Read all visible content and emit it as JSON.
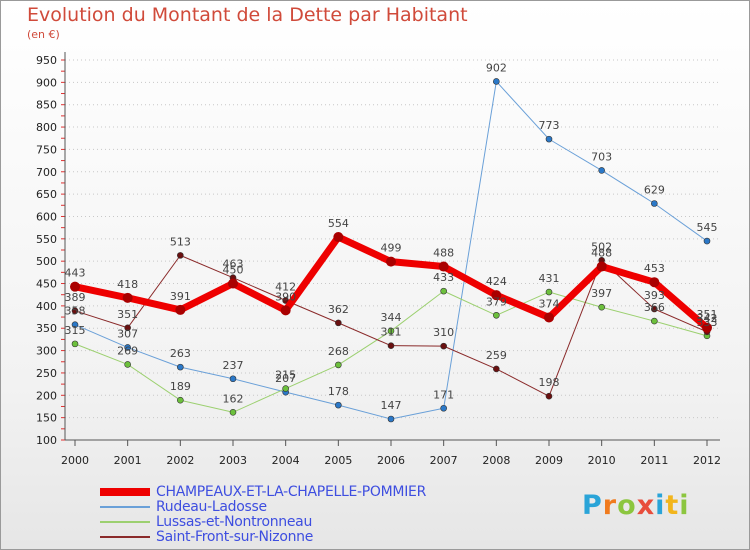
{
  "title": "Evolution du Montant de la Dette par Habitant",
  "subtitle": "(en €)",
  "logo": {
    "text": "Proxiti",
    "colors": [
      "#2aa4d8",
      "#f07b1e",
      "#8cc63f",
      "#e84d3c",
      "#2aa4d8",
      "#f2b51c",
      "#8cc63f"
    ]
  },
  "chart_data": {
    "type": "line",
    "title": "Evolution du Montant de la Dette par Habitant",
    "ylabel": "(en €)",
    "x": [
      "2000",
      "2001",
      "2002",
      "2003",
      "2004",
      "2005",
      "2006",
      "2007",
      "2008",
      "2009",
      "2010",
      "2011",
      "2012"
    ],
    "ylim": [
      100,
      950
    ],
    "yticks": [
      100,
      150,
      200,
      250,
      300,
      350,
      400,
      450,
      500,
      550,
      600,
      650,
      700,
      750,
      800,
      850,
      900,
      950
    ],
    "grid": "horizontal dotted",
    "legend": "bottom",
    "series": [
      {
        "name": "CHAMPEAUX-ET-LA-CHAPELLE-POMMIER",
        "color": "#ee0000",
        "point": "#aa0000",
        "width": 7,
        "values": [
          443,
          418,
          391,
          450,
          390,
          554,
          499,
          488,
          424,
          374,
          488,
          453,
          351
        ]
      },
      {
        "name": "Rudeau-Ladosse",
        "color": "#6aa0d8",
        "point": "#2a78c8",
        "width": 1,
        "values": [
          358,
          307,
          263,
          237,
          207,
          178,
          147,
          171,
          902,
          773,
          703,
          629,
          545
        ]
      },
      {
        "name": "Lussas-et-Nontronneau",
        "color": "#9cd070",
        "point": "#6cc03c",
        "width": 1,
        "values": [
          315,
          269,
          189,
          162,
          215,
          268,
          344,
          433,
          379,
          431,
          397,
          366,
          333
        ]
      },
      {
        "name": "Saint-Front-sur-Nizonne",
        "color": "#8a2a2a",
        "point": "#6a1010",
        "width": 1,
        "values": [
          389,
          351,
          513,
          463,
          412,
          362,
          311,
          310,
          259,
          198,
          502,
          393,
          342
        ]
      }
    ]
  }
}
